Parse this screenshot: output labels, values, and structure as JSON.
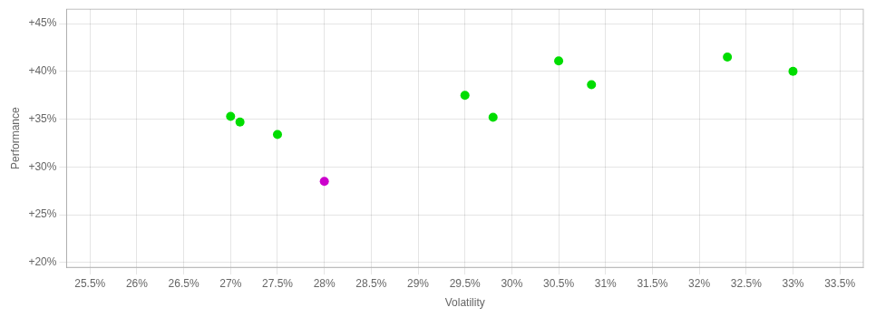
{
  "chart_data": {
    "type": "scatter",
    "x": [
      27.0,
      27.1,
      27.5,
      29.5,
      29.8,
      30.5,
      30.85,
      32.3,
      33.0,
      28.0
    ],
    "values": [
      35.3,
      34.7,
      33.4,
      37.5,
      35.2,
      41.1,
      38.6,
      41.5,
      40.0,
      28.5
    ],
    "colors": [
      "#00dd00",
      "#00dd00",
      "#00dd00",
      "#00dd00",
      "#00dd00",
      "#00dd00",
      "#00dd00",
      "#00dd00",
      "#00dd00",
      "#cc00cc"
    ],
    "xlabel": "Volatility",
    "ylabel": "Performance",
    "xlim": [
      25.25,
      33.75
    ],
    "ylim": [
      19.5,
      46.5
    ],
    "xticks": [
      {
        "value": 25.5,
        "label": "25.5%"
      },
      {
        "value": 26.0,
        "label": "26%"
      },
      {
        "value": 26.5,
        "label": "26.5%"
      },
      {
        "value": 27.0,
        "label": "27%"
      },
      {
        "value": 27.5,
        "label": "27.5%"
      },
      {
        "value": 28.0,
        "label": "28%"
      },
      {
        "value": 28.5,
        "label": "28.5%"
      },
      {
        "value": 29.0,
        "label": "29%"
      },
      {
        "value": 29.5,
        "label": "29.5%"
      },
      {
        "value": 30.0,
        "label": "30%"
      },
      {
        "value": 30.5,
        "label": "30.5%"
      },
      {
        "value": 31.0,
        "label": "31%"
      },
      {
        "value": 31.5,
        "label": "31.5%"
      },
      {
        "value": 32.0,
        "label": "32%"
      },
      {
        "value": 32.5,
        "label": "32.5%"
      },
      {
        "value": 33.0,
        "label": "33%"
      },
      {
        "value": 33.5,
        "label": "33.5%"
      }
    ],
    "yticks": [
      {
        "value": 20,
        "label": "+20%"
      },
      {
        "value": 25,
        "label": "+25%"
      },
      {
        "value": 30,
        "label": "+30%"
      },
      {
        "value": 35,
        "label": "+35%"
      },
      {
        "value": 40,
        "label": "+40%"
      },
      {
        "value": 45,
        "label": "+45%"
      }
    ],
    "grid": true
  }
}
